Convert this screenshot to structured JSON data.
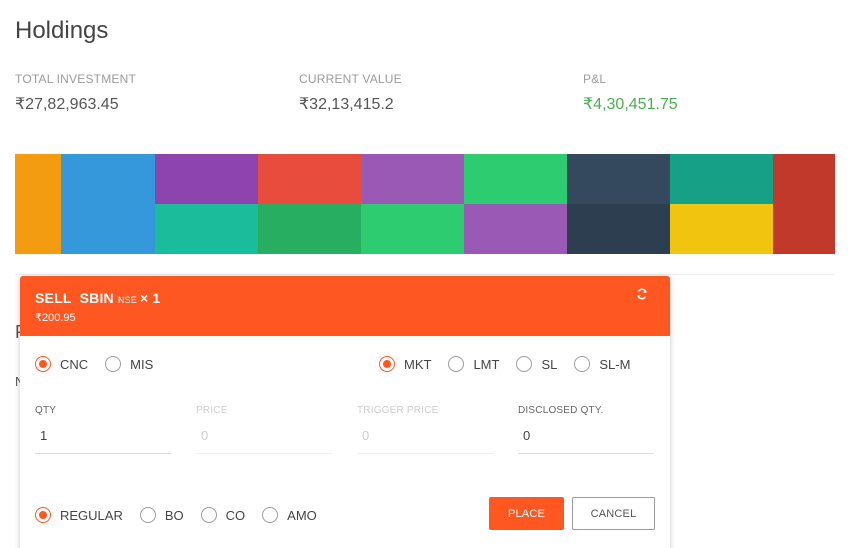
{
  "page": {
    "title": "Holdings"
  },
  "stats": [
    {
      "label": "TOTAL INVESTMENT",
      "value": "₹27,82,963.45"
    },
    {
      "label": "CURRENT VALUE",
      "value": "₹32,13,415.2"
    },
    {
      "label": "P&L",
      "value": "₹4,30,451.75"
    }
  ],
  "colors": {
    "accent": "#ff5722",
    "positive": "#4caf50",
    "treemap": [
      "#f39c12",
      "#3498db",
      "#8e44ad",
      "#e74c3c",
      "#9b59b6",
      "#2ecc71",
      "#34495e",
      "#16a085",
      "#c0392b",
      "#1abc9c",
      "#27ae60",
      "#2ecc71",
      "#9b59b6",
      "#2c3e50",
      "#f1c40f"
    ]
  },
  "background": {
    "fragment_1": "P",
    "fragment_2": "N"
  },
  "order_window": {
    "action": "SELL",
    "symbol": "SBIN",
    "exchange": "NSE",
    "quantity_suffix": "× 1",
    "price": "₹200.95",
    "refresh_icon": "refresh-icon",
    "product_options": [
      {
        "label": "CNC",
        "checked": true
      },
      {
        "label": "MIS",
        "checked": false
      }
    ],
    "order_type_options": [
      {
        "label": "MKT",
        "checked": true
      },
      {
        "label": "LMT",
        "checked": false
      },
      {
        "label": "SL",
        "checked": false
      },
      {
        "label": "SL-M",
        "checked": false
      }
    ],
    "variety_options": [
      {
        "label": "REGULAR",
        "checked": true
      },
      {
        "label": "BO",
        "checked": false
      },
      {
        "label": "CO",
        "checked": false
      },
      {
        "label": "AMO",
        "checked": false
      }
    ],
    "fields": {
      "qty": {
        "label": "QTY",
        "value": "1"
      },
      "price": {
        "label": "PRICE",
        "value": "0"
      },
      "trigger_price": {
        "label": "TRIGGER PRICE",
        "value": "0"
      },
      "disclosed_qty": {
        "label": "DISCLOSED QTY.",
        "value": "0"
      }
    },
    "buttons": {
      "place": "PLACE",
      "cancel": "CANCEL"
    }
  }
}
